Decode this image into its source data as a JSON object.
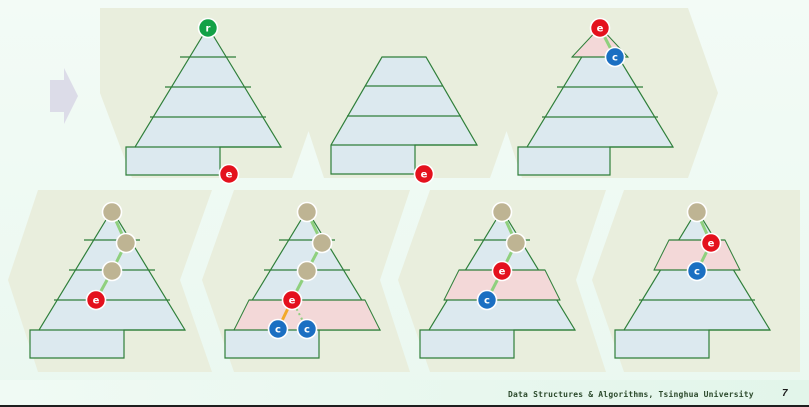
{
  "footer": {
    "text": "Data Structures & Algorithms, Tsinghua University",
    "page": "7"
  },
  "labels": {
    "root": "r",
    "e": "e",
    "c": "c"
  },
  "colors": {
    "panel": "#e9eedd",
    "tree_fill": "#dce9ef",
    "tree_stroke": "#2f7f3a",
    "band": "#f3d8d8",
    "root_node": "#13a147",
    "e_node": "#e4111d",
    "c_node": "#1b6fc2",
    "plain_node": "#beb493",
    "path_green": "#8fd07e",
    "path_orange": "#f2a92a",
    "arrow": "#dcdce8"
  }
}
